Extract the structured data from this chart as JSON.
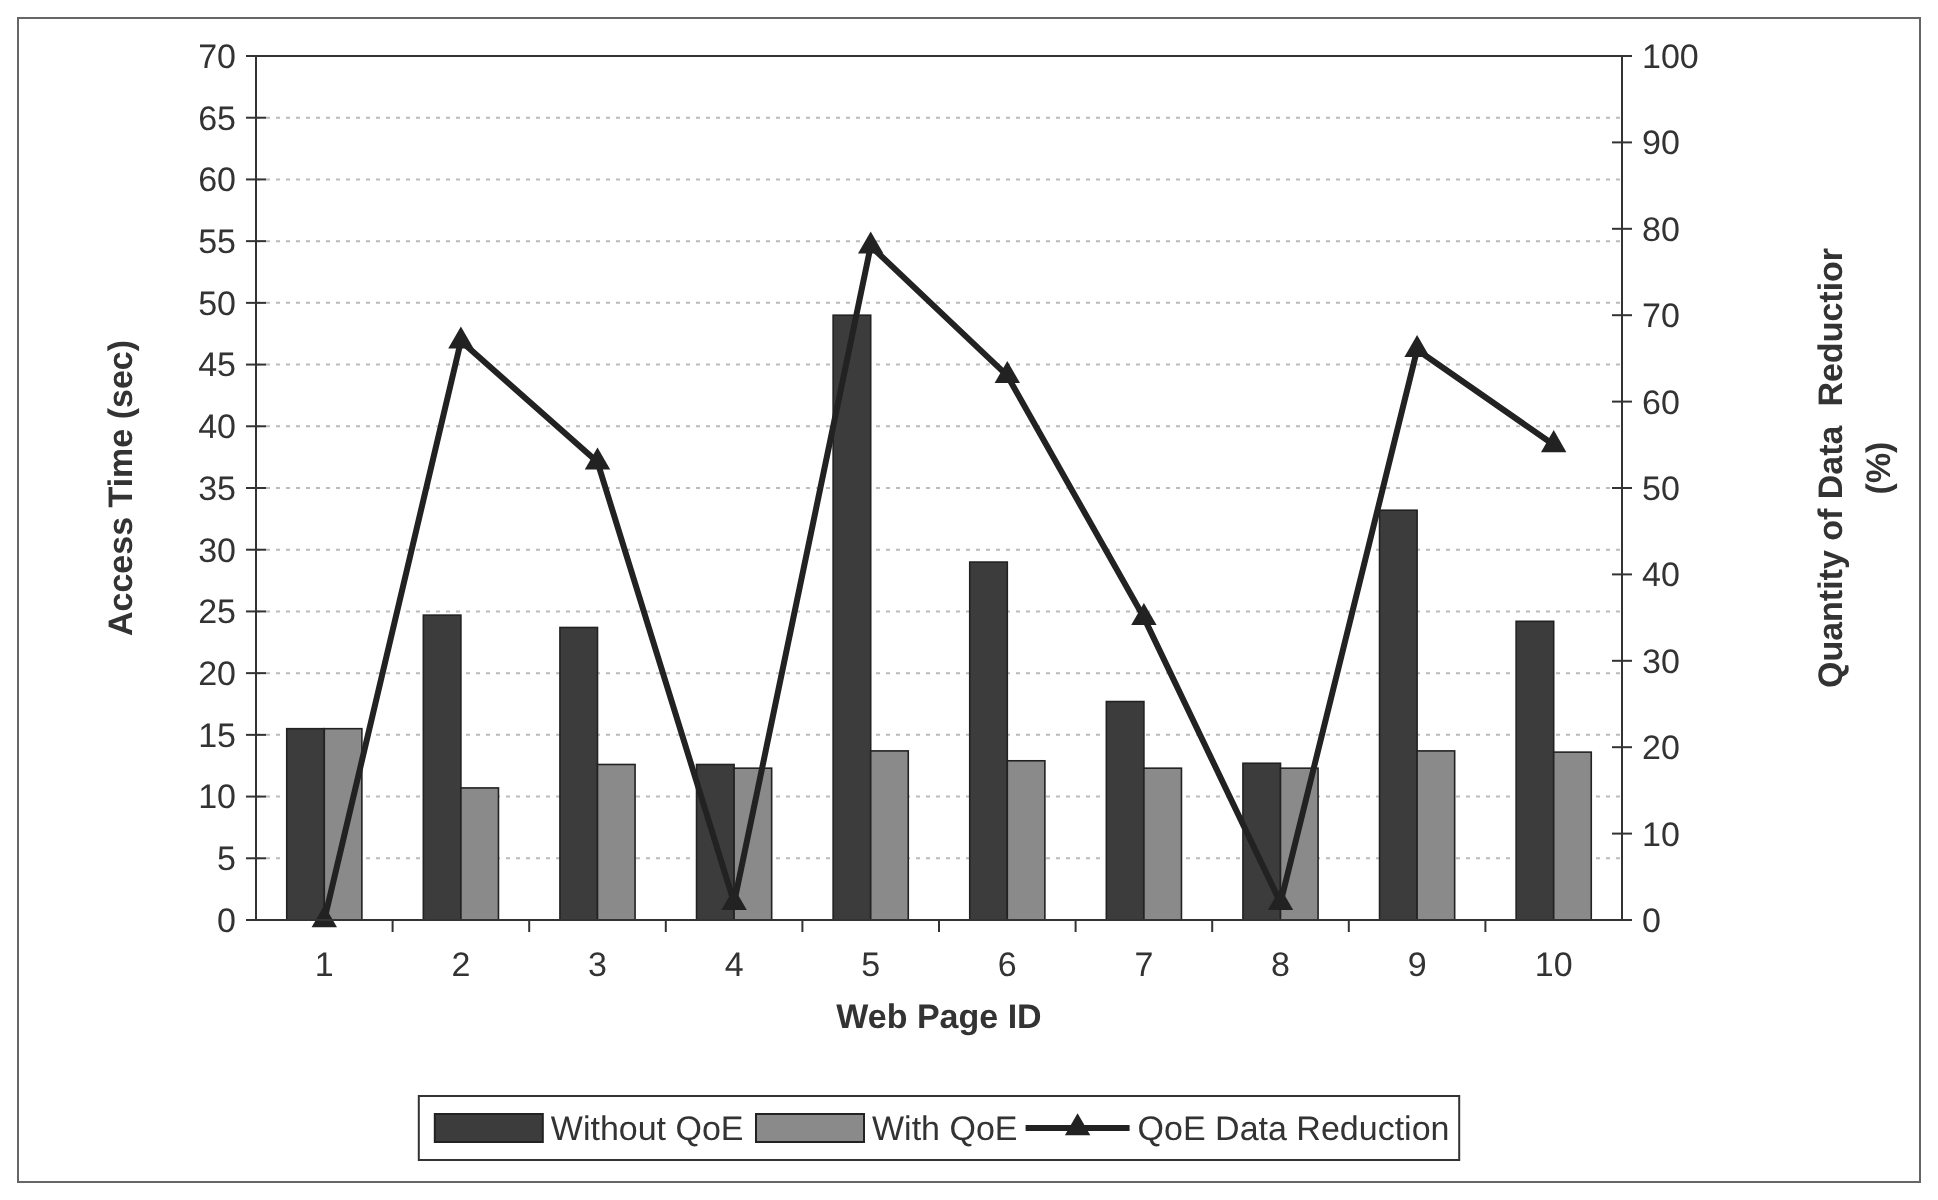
{
  "chart_data": {
    "type": "bar",
    "xlabel": "Web Page ID",
    "ylabel": "Access Time (sec)",
    "y2label": "Quantity of Data  Reductior\n(%)",
    "categories": [
      "1",
      "2",
      "3",
      "4",
      "5",
      "6",
      "7",
      "8",
      "9",
      "10"
    ],
    "series": [
      {
        "name": "Without QoE",
        "color": "#3c3c3c",
        "values": [
          15.5,
          24.7,
          23.7,
          12.6,
          49,
          29,
          17.7,
          12.7,
          33.2,
          24.2
        ]
      },
      {
        "name": "With QoE",
        "color": "#8a8a8a",
        "values": [
          15.5,
          10.7,
          12.6,
          12.3,
          13.7,
          12.9,
          12.3,
          12.3,
          13.7,
          13.6
        ]
      },
      {
        "name": "QoE Data Reduction",
        "type": "line",
        "axis": "y2",
        "color": "#222222",
        "marker": "triangle",
        "values": [
          0,
          67,
          53,
          2,
          78,
          63,
          35,
          2,
          66,
          55
        ]
      }
    ],
    "ylim": [
      0,
      70
    ],
    "yticks": [
      0,
      5,
      10,
      15,
      20,
      25,
      30,
      35,
      40,
      45,
      50,
      55,
      60,
      65,
      70
    ],
    "y2lim": [
      0,
      100
    ],
    "y2ticks": [
      0,
      10,
      20,
      30,
      40,
      50,
      60,
      70,
      80,
      90,
      100
    ],
    "grid": "y",
    "legend": "bottom"
  }
}
